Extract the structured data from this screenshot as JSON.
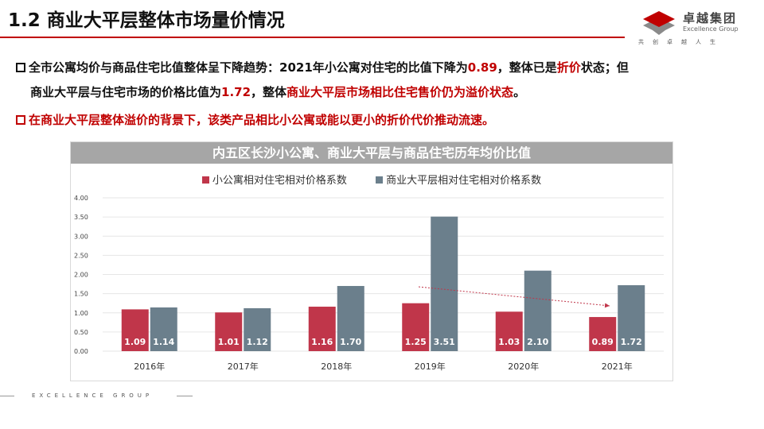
{
  "title": "1.2 商业大平层整体市场量价情况",
  "logo": {
    "cn": "卓越集团",
    "en": "Excellence Group",
    "motto": "共创卓越人生"
  },
  "bullets": {
    "b1_a": "全市公寓均价与商品住宅比值整体呈下降趋势：2021年小公寓对住宅的比值下降为",
    "b1_v1": "0.89",
    "b1_b": "，整体已是",
    "b1_hl1": "折价",
    "b1_c": "状态；但",
    "b1_d": "商业大平层与住宅市场的价格比值为",
    "b1_v2": "1.72",
    "b1_e": "，整体",
    "b1_hl2": "商业大平层市场相比住宅售价仍为溢价状态",
    "b1_f": "。",
    "b2": "在商业大平层整体溢价的背景下，该类产品相比小公寓或能以更小的折价代价推动流速。"
  },
  "footer": "EXCELLENCE GROUP",
  "chart_data": {
    "type": "bar",
    "title": "内五区长沙小公寓、商业大平层与商品住宅历年均价比值",
    "categories": [
      "2016年",
      "2017年",
      "2018年",
      "2019年",
      "2020年",
      "2021年"
    ],
    "series": [
      {
        "name": "小公寓相对住宅相对价格系数",
        "color": "#c0364a",
        "values": [
          1.09,
          1.01,
          1.16,
          1.25,
          1.03,
          0.89
        ]
      },
      {
        "name": "商业大平层相对住宅相对价格系数",
        "color": "#6b7f8c",
        "values": [
          1.14,
          1.12,
          1.7,
          3.51,
          2.1,
          1.72
        ]
      }
    ],
    "yticks": [
      "0.00",
      "0.50",
      "1.00",
      "1.50",
      "2.00",
      "2.50",
      "3.00",
      "3.50",
      "4.00"
    ],
    "ylim": [
      0,
      4
    ],
    "grid": true,
    "legend": "top",
    "annotation": "dotted red downward trend arrow from 2019 to 2021"
  }
}
